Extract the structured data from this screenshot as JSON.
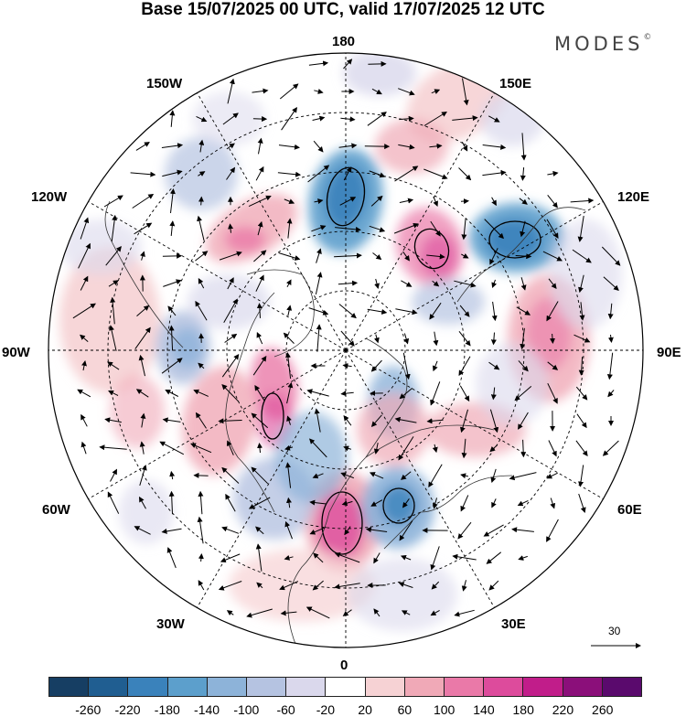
{
  "title": "Base 15/07/2025 00 UTC, valid 17/07/2025 12 UTC",
  "brand": "MODES",
  "brand_mark": "©",
  "longitude_labels": {
    "lon_180": "180",
    "lon_150E": "150E",
    "lon_120E": "120E",
    "lon_90E": "90E",
    "lon_60E": "60E",
    "lon_30E": "30E",
    "lon_0": "0",
    "lon_30W": "30W",
    "lon_60W": "60W",
    "lon_90W": "90W",
    "lon_120W": "120W",
    "lon_150W": "150W"
  },
  "vector_scale_label": "30",
  "colorbar": {
    "colors": [
      "#163e63",
      "#205e91",
      "#3a82bb",
      "#5c9fcc",
      "#8db3d9",
      "#b5c3e1",
      "#dad8ec",
      "#ffffff",
      "#f6d2d4",
      "#f0a9b7",
      "#ea79a8",
      "#dd4b9c",
      "#c11d8a",
      "#8b0f7a",
      "#5a0a6d"
    ],
    "tick_labels": [
      "-260",
      "-220",
      "-180",
      "-140",
      "-100",
      "-60",
      "-20",
      "20",
      "60",
      "100",
      "140",
      "180",
      "220",
      "260"
    ]
  },
  "icons": {
    "vector_arrow": "arrow-icon"
  }
}
